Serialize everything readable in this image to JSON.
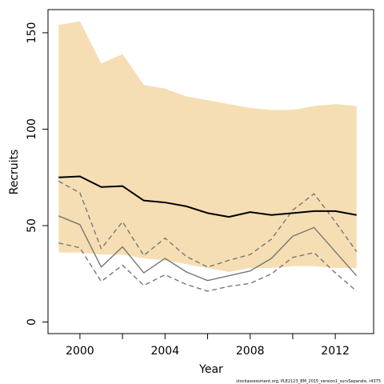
{
  "chart_data": {
    "type": "line",
    "xlabel": "Year",
    "ylabel": "Recruits",
    "caption": "stockassessment.org, PLE2123_BM_2015_version1_survSeparate, r4375",
    "xlim": [
      1998.5,
      2013.8
    ],
    "ylim": [
      -6,
      162
    ],
    "x_ticks": [
      2000,
      2002,
      2004,
      2006,
      2008,
      2010,
      2012
    ],
    "x_tick_labels": [
      "2000",
      "",
      "2004",
      "",
      "2008",
      "",
      "2012"
    ],
    "y_ticks": [
      0,
      50,
      100,
      150
    ],
    "y_tick_labels": [
      "0",
      "50",
      "100",
      "150"
    ],
    "grid": false,
    "legend": "none",
    "x": [
      1999,
      2000,
      2001,
      2002,
      2003,
      2004,
      2005,
      2006,
      2007,
      2008,
      2009,
      2010,
      2011,
      2012,
      2013
    ],
    "band": {
      "color": "#f5deb3",
      "upper": [
        154,
        156,
        134,
        139,
        123,
        121,
        117,
        115,
        113,
        111,
        110,
        110,
        112,
        113,
        112
      ],
      "lower": [
        36,
        36,
        35,
        35,
        33,
        32,
        30,
        28,
        26,
        28,
        28,
        29,
        29,
        28,
        28
      ]
    },
    "series": [
      {
        "role": "estimate",
        "color": "#000000",
        "dash": "solid",
        "width": 2,
        "values": [
          75,
          75.5,
          70,
          70.5,
          63,
          62,
          60,
          56.5,
          54.5,
          57,
          55.5,
          56.5,
          57.5,
          57.5,
          55.5
        ]
      },
      {
        "role": "estimate",
        "color": "#777777",
        "dash": "solid",
        "width": 1.4,
        "values": [
          55,
          50.5,
          28.5,
          39,
          25.5,
          33,
          26,
          21.5,
          24,
          26.5,
          33,
          44.5,
          49,
          36.5,
          24
        ]
      },
      {
        "role": "upper",
        "color": "#777777",
        "dash": "dashed",
        "width": 1.4,
        "values": [
          73,
          67,
          38,
          52,
          34.5,
          43.5,
          34,
          28.5,
          32,
          35,
          43,
          58,
          66.5,
          52,
          36.5
        ]
      },
      {
        "role": "lower",
        "color": "#777777",
        "dash": "dashed",
        "width": 1.4,
        "values": [
          41,
          38.5,
          21,
          29.5,
          19,
          24.5,
          19.5,
          16,
          18.5,
          20,
          25,
          33.5,
          36,
          25.5,
          16
        ]
      }
    ]
  }
}
